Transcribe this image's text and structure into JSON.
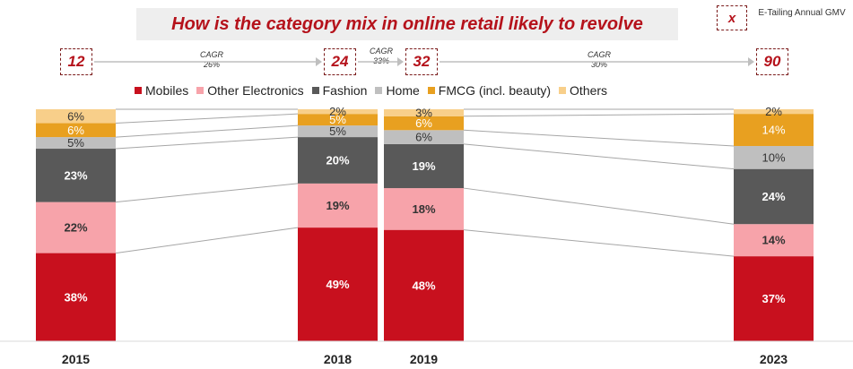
{
  "title": "How is the category mix in online retail likely to revolve",
  "key": {
    "symbol": "x",
    "label": "E-Tailing Annual GMV"
  },
  "gmv": [
    {
      "year": "2015",
      "value": "12"
    },
    {
      "year": "2018",
      "value": "24"
    },
    {
      "year": "2019",
      "value": "32"
    },
    {
      "year": "2023",
      "value": "90"
    }
  ],
  "cagr": [
    {
      "label": "CAGR",
      "value": "26%"
    },
    {
      "label": "CAGR",
      "value": "33%"
    },
    {
      "label": "CAGR",
      "value": "30%"
    }
  ],
  "colors": {
    "Mobiles": "#c8101e",
    "Other Electronics": "#f7a3aa",
    "Fashion": "#595959",
    "Home": "#bfbfbf",
    "FMCG (incl. beauty)": "#e8a020",
    "Others": "#f8cf8a"
  },
  "chart_data": {
    "type": "bar",
    "stacked": true,
    "percent": true,
    "categories": [
      "2015",
      "2018",
      "2019",
      "2023"
    ],
    "series": [
      {
        "name": "Mobiles",
        "values": [
          38,
          49,
          48,
          37
        ]
      },
      {
        "name": "Other Electronics",
        "values": [
          22,
          19,
          18,
          14
        ]
      },
      {
        "name": "Fashion",
        "values": [
          23,
          20,
          19,
          24
        ]
      },
      {
        "name": "Home",
        "values": [
          5,
          5,
          6,
          10
        ]
      },
      {
        "name": "FMCG (incl. beauty)",
        "values": [
          6,
          5,
          6,
          14
        ]
      },
      {
        "name": "Others",
        "values": [
          6,
          2,
          3,
          2
        ]
      }
    ],
    "legend": "top"
  }
}
